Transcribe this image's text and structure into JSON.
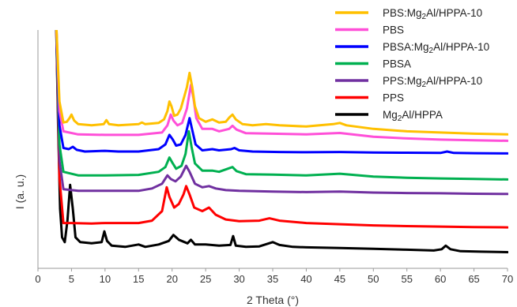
{
  "chart_data": {
    "type": "line",
    "xlabel": "2 Theta (°)",
    "ylabel": "I (a. u.)",
    "xlim": [
      0,
      70
    ],
    "x_ticks": [
      0,
      5,
      10,
      15,
      20,
      25,
      30,
      35,
      40,
      45,
      50,
      55,
      60,
      65,
      70
    ],
    "ylim": [
      0,
      1
    ],
    "y_ticks_shown": false,
    "grid": false,
    "legend_position": "top-right",
    "series": [
      {
        "name": "PBS:Mg2Al/HPPA-10",
        "color": "#FFC000",
        "points": [
          [
            2.7,
            1.05
          ],
          [
            3.2,
            0.7
          ],
          [
            3.8,
            0.612
          ],
          [
            4.3,
            0.615
          ],
          [
            4.7,
            0.63
          ],
          [
            5.0,
            0.645
          ],
          [
            5.4,
            0.62
          ],
          [
            6,
            0.605
          ],
          [
            8,
            0.6
          ],
          [
            9.8,
            0.605
          ],
          [
            10.2,
            0.622
          ],
          [
            10.6,
            0.605
          ],
          [
            12,
            0.6
          ],
          [
            15,
            0.605
          ],
          [
            15.5,
            0.612
          ],
          [
            16,
            0.605
          ],
          [
            18,
            0.61
          ],
          [
            18.8,
            0.625
          ],
          [
            19.3,
            0.66
          ],
          [
            19.6,
            0.7
          ],
          [
            19.9,
            0.68
          ],
          [
            20.3,
            0.64
          ],
          [
            20.8,
            0.645
          ],
          [
            21.3,
            0.67
          ],
          [
            21.8,
            0.72
          ],
          [
            22.2,
            0.76
          ],
          [
            22.6,
            0.82
          ],
          [
            23.0,
            0.76
          ],
          [
            23.4,
            0.68
          ],
          [
            24,
            0.63
          ],
          [
            25,
            0.615
          ],
          [
            26,
            0.625
          ],
          [
            27,
            0.612
          ],
          [
            28,
            0.615
          ],
          [
            28.6,
            0.635
          ],
          [
            29,
            0.645
          ],
          [
            29.5,
            0.625
          ],
          [
            30.5,
            0.605
          ],
          [
            32,
            0.6
          ],
          [
            34,
            0.605
          ],
          [
            36,
            0.6
          ],
          [
            40,
            0.595
          ],
          [
            44,
            0.605
          ],
          [
            45,
            0.61
          ],
          [
            46,
            0.6
          ],
          [
            50,
            0.585
          ],
          [
            55,
            0.575
          ],
          [
            60,
            0.57
          ],
          [
            65,
            0.565
          ],
          [
            70,
            0.562
          ]
        ]
      },
      {
        "name": "PBS",
        "color": "#FF4FD8",
        "points": [
          [
            2.7,
            1.05
          ],
          [
            3.2,
            0.66
          ],
          [
            3.8,
            0.575
          ],
          [
            6,
            0.562
          ],
          [
            10,
            0.56
          ],
          [
            15,
            0.56
          ],
          [
            18.5,
            0.57
          ],
          [
            19.3,
            0.6
          ],
          [
            19.8,
            0.645
          ],
          [
            20.2,
            0.62
          ],
          [
            20.8,
            0.6
          ],
          [
            21.5,
            0.61
          ],
          [
            22.2,
            0.67
          ],
          [
            22.8,
            0.77
          ],
          [
            23.2,
            0.71
          ],
          [
            23.6,
            0.63
          ],
          [
            24.5,
            0.585
          ],
          [
            26,
            0.585
          ],
          [
            27,
            0.575
          ],
          [
            28.5,
            0.585
          ],
          [
            29,
            0.598
          ],
          [
            29.6,
            0.582
          ],
          [
            31,
            0.567
          ],
          [
            35,
            0.565
          ],
          [
            40,
            0.562
          ],
          [
            45,
            0.568
          ],
          [
            50,
            0.552
          ],
          [
            55,
            0.545
          ],
          [
            60,
            0.54
          ],
          [
            65,
            0.537
          ],
          [
            70,
            0.535
          ]
        ]
      },
      {
        "name": "PBSA:Mg2Al/HPPA-10",
        "color": "#0000FF",
        "points": [
          [
            2.7,
            1.05
          ],
          [
            3.2,
            0.6
          ],
          [
            3.8,
            0.505
          ],
          [
            4.6,
            0.5
          ],
          [
            5.2,
            0.51
          ],
          [
            5.8,
            0.497
          ],
          [
            7,
            0.49
          ],
          [
            10,
            0.493
          ],
          [
            12,
            0.49
          ],
          [
            15,
            0.49
          ],
          [
            18,
            0.5
          ],
          [
            19,
            0.52
          ],
          [
            19.6,
            0.56
          ],
          [
            20.1,
            0.54
          ],
          [
            20.6,
            0.515
          ],
          [
            21.3,
            0.52
          ],
          [
            22,
            0.56
          ],
          [
            22.6,
            0.63
          ],
          [
            23,
            0.58
          ],
          [
            23.5,
            0.52
          ],
          [
            24.5,
            0.495
          ],
          [
            26,
            0.5
          ],
          [
            27,
            0.495
          ],
          [
            28.8,
            0.5
          ],
          [
            29.3,
            0.505
          ],
          [
            30,
            0.495
          ],
          [
            32,
            0.49
          ],
          [
            36,
            0.488
          ],
          [
            40,
            0.487
          ],
          [
            45,
            0.488
          ],
          [
            50,
            0.486
          ],
          [
            55,
            0.485
          ],
          [
            60,
            0.484
          ],
          [
            61,
            0.49
          ],
          [
            62,
            0.484
          ],
          [
            65,
            0.483
          ],
          [
            70,
            0.482
          ]
        ]
      },
      {
        "name": "PBSA",
        "color": "#00B050",
        "points": [
          [
            2.7,
            1.05
          ],
          [
            3.2,
            0.52
          ],
          [
            3.8,
            0.405
          ],
          [
            6,
            0.39
          ],
          [
            10,
            0.39
          ],
          [
            15,
            0.392
          ],
          [
            18,
            0.405
          ],
          [
            19,
            0.425
          ],
          [
            19.6,
            0.465
          ],
          [
            20.1,
            0.44
          ],
          [
            20.6,
            0.418
          ],
          [
            21.4,
            0.43
          ],
          [
            22,
            0.48
          ],
          [
            22.5,
            0.575
          ],
          [
            22.9,
            0.51
          ],
          [
            23.4,
            0.44
          ],
          [
            24.5,
            0.41
          ],
          [
            26,
            0.41
          ],
          [
            27,
            0.405
          ],
          [
            28.5,
            0.42
          ],
          [
            29,
            0.425
          ],
          [
            29.6,
            0.408
          ],
          [
            31,
            0.395
          ],
          [
            35,
            0.393
          ],
          [
            40,
            0.39
          ],
          [
            45,
            0.397
          ],
          [
            50,
            0.385
          ],
          [
            55,
            0.38
          ],
          [
            60,
            0.377
          ],
          [
            65,
            0.375
          ],
          [
            70,
            0.373
          ]
        ]
      },
      {
        "name": "PPS:Mg2Al/HPPA-10",
        "color": "#7030A0",
        "points": [
          [
            2.7,
            1.05
          ],
          [
            3.2,
            0.45
          ],
          [
            3.8,
            0.332
          ],
          [
            6,
            0.325
          ],
          [
            10,
            0.325
          ],
          [
            15,
            0.325
          ],
          [
            17,
            0.335
          ],
          [
            18.5,
            0.355
          ],
          [
            19.3,
            0.39
          ],
          [
            19.8,
            0.375
          ],
          [
            20.5,
            0.365
          ],
          [
            21.3,
            0.385
          ],
          [
            22.1,
            0.43
          ],
          [
            22.6,
            0.405
          ],
          [
            23.4,
            0.355
          ],
          [
            24.5,
            0.34
          ],
          [
            25.5,
            0.345
          ],
          [
            26.5,
            0.335
          ],
          [
            28,
            0.328
          ],
          [
            30,
            0.325
          ],
          [
            35,
            0.322
          ],
          [
            40,
            0.32
          ],
          [
            45,
            0.322
          ],
          [
            50,
            0.318
          ],
          [
            55,
            0.316
          ],
          [
            60,
            0.315
          ],
          [
            65,
            0.313
          ],
          [
            70,
            0.312
          ]
        ]
      },
      {
        "name": "PPS",
        "color": "#FF0000",
        "points": [
          [
            2.7,
            1.05
          ],
          [
            3.2,
            0.38
          ],
          [
            3.8,
            0.19
          ],
          [
            5,
            0.19
          ],
          [
            8,
            0.188
          ],
          [
            10,
            0.19
          ],
          [
            12,
            0.19
          ],
          [
            15,
            0.19
          ],
          [
            17,
            0.2
          ],
          [
            18.5,
            0.24
          ],
          [
            19.2,
            0.34
          ],
          [
            19.6,
            0.3
          ],
          [
            20.3,
            0.255
          ],
          [
            21,
            0.27
          ],
          [
            21.7,
            0.31
          ],
          [
            22.1,
            0.345
          ],
          [
            22.6,
            0.31
          ],
          [
            23.3,
            0.255
          ],
          [
            24.5,
            0.24
          ],
          [
            25.5,
            0.255
          ],
          [
            26.5,
            0.225
          ],
          [
            28,
            0.205
          ],
          [
            30,
            0.198
          ],
          [
            33,
            0.2
          ],
          [
            34.5,
            0.21
          ],
          [
            36,
            0.2
          ],
          [
            40,
            0.19
          ],
          [
            45,
            0.185
          ],
          [
            50,
            0.18
          ],
          [
            55,
            0.177
          ],
          [
            60,
            0.175
          ],
          [
            65,
            0.173
          ],
          [
            70,
            0.172
          ]
        ]
      },
      {
        "name": "Mg2Al/HPPA",
        "color": "#000000",
        "points": [
          [
            2.7,
            1.05
          ],
          [
            3.0,
            0.6
          ],
          [
            3.3,
            0.25
          ],
          [
            3.6,
            0.13
          ],
          [
            4.0,
            0.11
          ],
          [
            4.4,
            0.2
          ],
          [
            4.8,
            0.35
          ],
          [
            5.2,
            0.25
          ],
          [
            5.6,
            0.13
          ],
          [
            6.3,
            0.11
          ],
          [
            8,
            0.105
          ],
          [
            9.5,
            0.11
          ],
          [
            9.9,
            0.155
          ],
          [
            10.3,
            0.115
          ],
          [
            11,
            0.095
          ],
          [
            13,
            0.09
          ],
          [
            15,
            0.1
          ],
          [
            16,
            0.09
          ],
          [
            18,
            0.1
          ],
          [
            19.5,
            0.115
          ],
          [
            20.2,
            0.14
          ],
          [
            21,
            0.12
          ],
          [
            22.3,
            0.105
          ],
          [
            22.8,
            0.12
          ],
          [
            23.4,
            0.1
          ],
          [
            25,
            0.1
          ],
          [
            27,
            0.095
          ],
          [
            28.7,
            0.098
          ],
          [
            29.1,
            0.135
          ],
          [
            29.5,
            0.095
          ],
          [
            31,
            0.09
          ],
          [
            33,
            0.092
          ],
          [
            35,
            0.11
          ],
          [
            36,
            0.098
          ],
          [
            38,
            0.09
          ],
          [
            40,
            0.088
          ],
          [
            45,
            0.085
          ],
          [
            50,
            0.082
          ],
          [
            55,
            0.078
          ],
          [
            59,
            0.075
          ],
          [
            60.2,
            0.08
          ],
          [
            60.8,
            0.095
          ],
          [
            61.5,
            0.08
          ],
          [
            63,
            0.072
          ],
          [
            66,
            0.07
          ],
          [
            70,
            0.068
          ]
        ]
      }
    ]
  },
  "legend": [
    {
      "label": "PBS:Mg2Al/HPPA-10",
      "main": "PBS:Mg",
      "sub": "2",
      "rest": "Al/HPPA-10",
      "color": "#FFC000"
    },
    {
      "label": "PBS",
      "main": "PBS",
      "sub": "",
      "rest": "",
      "color": "#FF4FD8"
    },
    {
      "label": "PBSA:Mg2Al/HPPA-10",
      "main": "PBSA:Mg",
      "sub": "2",
      "rest": "Al/HPPA-10",
      "color": "#0000FF"
    },
    {
      "label": "PBSA",
      "main": "PBSA",
      "sub": "",
      "rest": "",
      "color": "#00B050"
    },
    {
      "label": "PPS:Mg2Al/HPPA-10",
      "main": "PPS:Mg",
      "sub": "2",
      "rest": "Al/HPPA-10",
      "color": "#7030A0"
    },
    {
      "label": "PPS",
      "main": "PPS",
      "sub": "",
      "rest": "",
      "color": "#FF0000"
    },
    {
      "label": "Mg2Al/HPPA",
      "main": "Mg",
      "sub": "2",
      "rest": "Al/HPPA",
      "color": "#000000"
    }
  ]
}
